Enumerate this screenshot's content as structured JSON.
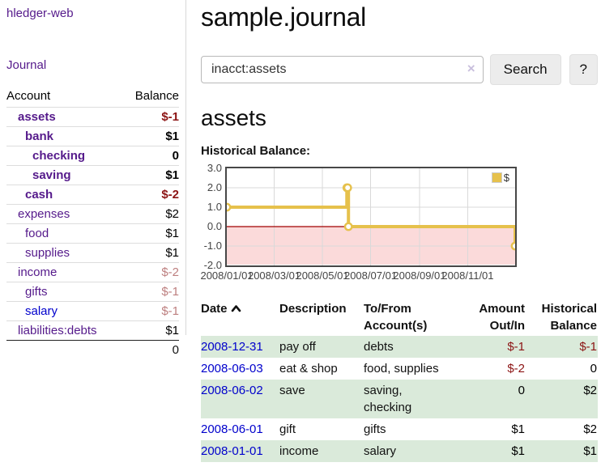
{
  "sidebar": {
    "brand": "hledger-web",
    "nav": {
      "journal": "Journal"
    },
    "accounts_table": {
      "headers": {
        "account": "Account",
        "balance": "Balance"
      },
      "accounts": [
        {
          "name": "assets",
          "balance": "$-1",
          "indent": 1,
          "bold": true,
          "link_color": "purple",
          "balance_color": "negative-strong"
        },
        {
          "name": "bank",
          "balance": "$1",
          "indent": 2,
          "bold": true,
          "link_color": "purple",
          "balance_color": "normal"
        },
        {
          "name": "checking",
          "balance": "0",
          "indent": 3,
          "bold": true,
          "link_color": "purple",
          "balance_color": "normal"
        },
        {
          "name": "saving",
          "balance": "$1",
          "indent": 3,
          "bold": true,
          "link_color": "purple",
          "balance_color": "normal"
        },
        {
          "name": "cash",
          "balance": "$-2",
          "indent": 2,
          "bold": true,
          "link_color": "purple",
          "balance_color": "negative-strong"
        },
        {
          "name": "expenses",
          "balance": "$2",
          "indent": 1,
          "bold": false,
          "link_color": "purple",
          "balance_color": "normal"
        },
        {
          "name": "food",
          "balance": "$1",
          "indent": 2,
          "bold": false,
          "link_color": "purple",
          "balance_color": "normal"
        },
        {
          "name": "supplies",
          "balance": "$1",
          "indent": 2,
          "bold": false,
          "link_color": "purple",
          "balance_color": "normal"
        },
        {
          "name": "income",
          "balance": "$-2",
          "indent": 1,
          "bold": false,
          "link_color": "purple",
          "balance_color": "negative-soft"
        },
        {
          "name": "gifts",
          "balance": "$-1",
          "indent": 2,
          "bold": false,
          "link_color": "purple",
          "balance_color": "negative-soft"
        },
        {
          "name": "salary",
          "balance": "$-1",
          "indent": 2,
          "bold": false,
          "link_color": "blue",
          "balance_color": "negative-soft"
        },
        {
          "name": "liabilities:debts",
          "balance": "$1",
          "indent": 1,
          "bold": false,
          "link_color": "purple",
          "balance_color": "normal"
        }
      ],
      "total": "0"
    }
  },
  "main": {
    "title": "sample.journal",
    "search": {
      "value": "inacct:assets",
      "clear_icon": "×",
      "search_button": "Search",
      "help_button": "?"
    },
    "account_heading": "assets",
    "chart_heading": "Historical Balance:"
  },
  "chart_data": {
    "type": "line",
    "title": "Historical Balance",
    "step": true,
    "series": [
      {
        "name": "$",
        "color": "#e6c14c",
        "points": [
          [
            "2008-01-01",
            1
          ],
          [
            "2008-06-01",
            2
          ],
          [
            "2008-06-02",
            2
          ],
          [
            "2008-06-03",
            0
          ],
          [
            "2008-12-31",
            -1
          ]
        ]
      }
    ],
    "x_range": [
      "2008-01-01",
      "2008-12-31"
    ],
    "x_ticks": [
      "2008/01/01",
      "2008/03/01",
      "2008/05/01",
      "2008/07/01",
      "2008/09/01",
      "2008/11/01"
    ],
    "y_ticks": [
      3.0,
      2.0,
      1.0,
      0.0,
      -1.0,
      -2.0
    ],
    "ylim": [
      -2,
      3
    ],
    "grid": true,
    "legend": {
      "position": "top-right",
      "label": "$",
      "swatch_color": "#e6c14c"
    },
    "negative_region_color": "#fbdada",
    "zero_line_color": "#a00000"
  },
  "register": {
    "headers": [
      "Date",
      "Description",
      "To/From Account(s)",
      "Amount Out/In",
      "Historical Balance"
    ],
    "sort_icon": "chevron-up",
    "rows": [
      {
        "date": "2008-12-31",
        "description": "pay off",
        "accounts": "debts",
        "amount": "$-1",
        "amount_color": "negative",
        "balance": "$-1",
        "balance_color": "negative"
      },
      {
        "date": "2008-06-03",
        "description": "eat & shop",
        "accounts": "food, supplies",
        "amount": "$-2",
        "amount_color": "negative",
        "balance": "0",
        "balance_color": "normal"
      },
      {
        "date": "2008-06-02",
        "description": "save",
        "accounts": "saving, checking",
        "amount": "0",
        "amount_color": "normal",
        "balance": "$2",
        "balance_color": "normal"
      },
      {
        "date": "2008-06-01",
        "description": "gift",
        "accounts": "gifts",
        "amount": "$1",
        "amount_color": "normal",
        "balance": "$2",
        "balance_color": "normal"
      },
      {
        "date": "2008-01-01",
        "description": "income",
        "accounts": "salary",
        "amount": "$1",
        "amount_color": "normal",
        "balance": "$1",
        "balance_color": "normal"
      }
    ]
  }
}
